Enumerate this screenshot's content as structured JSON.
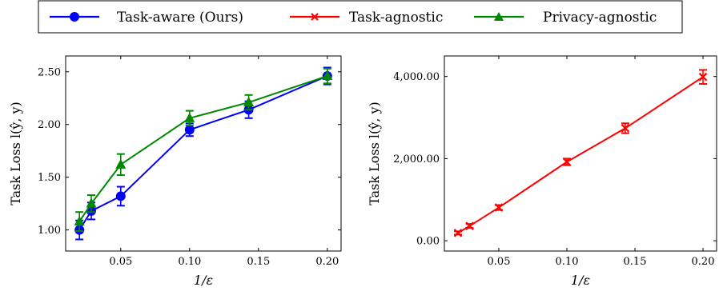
{
  "legend": {
    "items": [
      {
        "label": "Task-aware (Ours)",
        "color": "#0000ff",
        "marker": "circle"
      },
      {
        "label": "Task-agnostic",
        "color": "#ff0000",
        "marker": "x"
      },
      {
        "label": "Privacy-agnostic",
        "color": "#008800",
        "marker": "triangle"
      }
    ]
  },
  "chart_data": [
    {
      "type": "line",
      "xlabel": "1/ε",
      "ylabel": "Task Loss l(ŷ, y)",
      "xlim": [
        0.01,
        0.21
      ],
      "ylim": [
        0.8,
        2.65
      ],
      "xticks": [
        0.05,
        0.1,
        0.15,
        0.2
      ],
      "xtick_labels": [
        "0.05",
        "0.10",
        "0.15",
        "0.20"
      ],
      "yticks": [
        1.0,
        1.5,
        2.0,
        2.5
      ],
      "ytick_labels": [
        "1.00",
        "1.50",
        "2.00",
        "2.50"
      ],
      "grid": false,
      "series": [
        {
          "name": "Task-aware (Ours)",
          "color": "#0000ff",
          "marker": "circle",
          "x": [
            0.02,
            0.0286,
            0.05,
            0.1,
            0.1429,
            0.2
          ],
          "y": [
            1.0,
            1.18,
            1.32,
            1.95,
            2.14,
            2.46
          ],
          "err": [
            0.09,
            0.08,
            0.09,
            0.06,
            0.08,
            0.08
          ]
        },
        {
          "name": "Privacy-agnostic",
          "color": "#008800",
          "marker": "triangle",
          "x": [
            0.02,
            0.0286,
            0.05,
            0.1,
            0.1429,
            0.2
          ],
          "y": [
            1.08,
            1.25,
            1.62,
            2.06,
            2.21,
            2.46
          ],
          "err": [
            0.09,
            0.08,
            0.1,
            0.07,
            0.07,
            0.07
          ]
        }
      ]
    },
    {
      "type": "line",
      "xlabel": "1/ε",
      "ylabel": "Task Loss l(ŷ, y)",
      "xlim": [
        0.01,
        0.21
      ],
      "ylim": [
        -250,
        4500
      ],
      "xticks": [
        0.05,
        0.1,
        0.15,
        0.2
      ],
      "xtick_labels": [
        "0.05",
        "0.10",
        "0.15",
        "0.20"
      ],
      "yticks": [
        0,
        2000,
        4000
      ],
      "ytick_labels": [
        "0.00",
        "2,000.00",
        "4,000.00"
      ],
      "grid": false,
      "series": [
        {
          "name": "Task-agnostic",
          "color": "#ff0000",
          "marker": "x",
          "x": [
            0.02,
            0.0286,
            0.05,
            0.1,
            0.1429,
            0.2
          ],
          "y": [
            190,
            360,
            810,
            1920,
            2740,
            3990
          ],
          "err": [
            40,
            50,
            60,
            80,
            120,
            170
          ]
        }
      ]
    }
  ]
}
